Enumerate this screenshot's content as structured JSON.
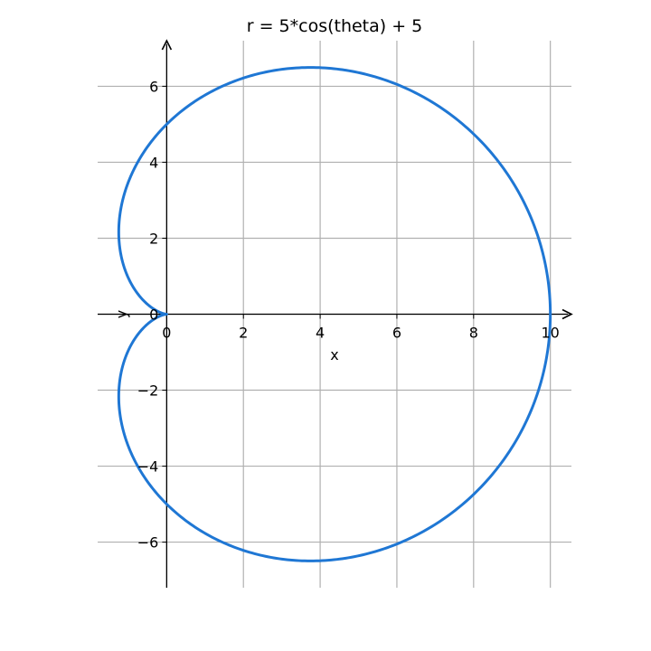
{
  "chart_data": {
    "type": "line",
    "title": "r = 5*cos(theta) + 5",
    "xlabel": "x",
    "ylabel": "y",
    "xlim": [
      -1.8,
      10.55
    ],
    "ylim": [
      -7.2,
      7.2
    ],
    "x_ticks": [
      0,
      2,
      4,
      6,
      8,
      10
    ],
    "y_ticks": [
      -6,
      -4,
      -2,
      0,
      2,
      4,
      6
    ],
    "x_tick_labels": [
      "0",
      "2",
      "4",
      "6",
      "8",
      "10"
    ],
    "y_tick_labels": [
      "−6",
      "−4",
      "−2",
      "0",
      "2",
      "4",
      "6"
    ],
    "grid": true,
    "line_color": "#1f77d4",
    "series": [
      {
        "polar_equation": "r = 5*cos(theta) + 5",
        "theta_range": [
          0,
          6.2832
        ]
      }
    ]
  }
}
